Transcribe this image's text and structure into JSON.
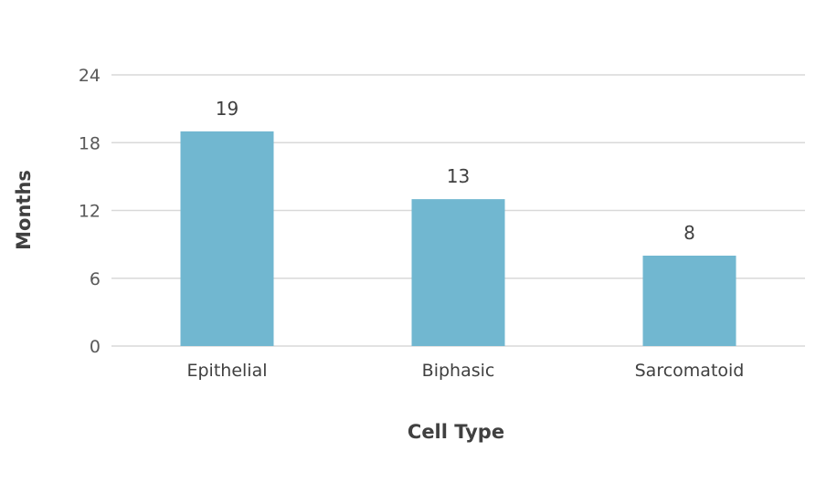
{
  "chart_data": {
    "type": "bar",
    "categories": [
      "Epithelial",
      "Biphasic",
      "Sarcomatoid"
    ],
    "values": [
      19,
      13,
      8
    ],
    "data_labels": [
      "19",
      "13",
      "8"
    ],
    "title": "",
    "xlabel": "Cell Type",
    "ylabel": "Months",
    "ylim": [
      0,
      24
    ],
    "yticks": [
      0,
      6,
      12,
      18,
      24
    ],
    "ytick_labels": [
      "0",
      "6",
      "12",
      "18",
      "24"
    ],
    "grid": true,
    "legend": "none",
    "bar_color": "#71b7d0",
    "gridline_color": "#d9d9d9",
    "text_color": "#404040"
  }
}
